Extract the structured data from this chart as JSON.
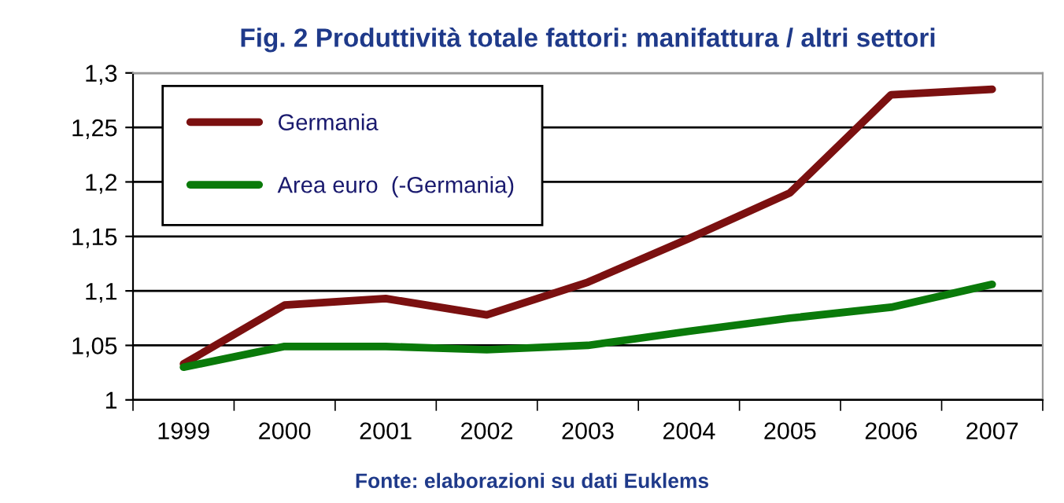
{
  "chart_data": {
    "type": "line",
    "title": "Fig. 2 Produttività totale fattori: manifattura / altri settori",
    "categories": [
      "1999",
      "2000",
      "2001",
      "2002",
      "2003",
      "2004",
      "2005",
      "2006",
      "2007"
    ],
    "series": [
      {
        "name": "Germania",
        "color": "#7b1010",
        "values": [
          1.033,
          1.087,
          1.093,
          1.078,
          1.108,
          1.148,
          1.19,
          1.28,
          1.285
        ]
      },
      {
        "name": "Area euro  (-Germania)",
        "color": "#0a7a0a",
        "values": [
          1.03,
          1.049,
          1.049,
          1.046,
          1.05,
          1.063,
          1.075,
          1.085,
          1.106
        ]
      }
    ],
    "ylim": [
      1,
      1.3
    ],
    "yticks": [
      1,
      {
        "value": 1.05,
        "label": "1,05"
      },
      {
        "value": 1.1,
        "label": "1,1"
      },
      {
        "value": 1.15,
        "label": "1,15"
      },
      {
        "value": 1.2,
        "label": "1,2"
      },
      {
        "value": 1.25,
        "label": "1,25"
      },
      {
        "value": 1.3,
        "label": "1,3"
      }
    ],
    "grid": "y",
    "legend": "top left",
    "marker": "none",
    "line_style": "solid",
    "annotations": [
      "Fonte: elaborazioni su dati Euklems"
    ]
  }
}
